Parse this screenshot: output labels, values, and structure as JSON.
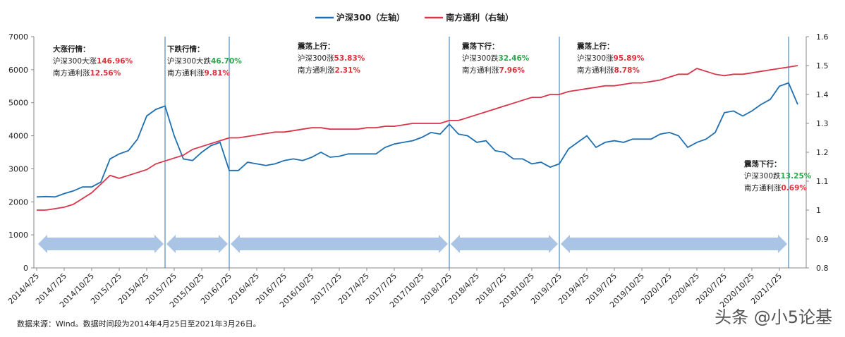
{
  "chart_data": {
    "type": "line",
    "legend_position": "top",
    "x": [
      "2014/4/25",
      null,
      null,
      "2014/7/25",
      null,
      null,
      "2014/10/25",
      null,
      null,
      "2015/1/25",
      null,
      null,
      "2015/4/25",
      null,
      null,
      "2015/7/25",
      null,
      null,
      "2015/10/25",
      null,
      null,
      "2016/1/25",
      null,
      null,
      "2016/4/25",
      null,
      null,
      "2016/7/25",
      null,
      null,
      "2016/10/25",
      null,
      null,
      "2017/1/25",
      null,
      null,
      "2017/4/25",
      null,
      null,
      "2017/7/25",
      null,
      null,
      "2017/10/25",
      null,
      null,
      "2018/1/25",
      null,
      null,
      "2018/4/25",
      null,
      null,
      "2018/7/25",
      null,
      null,
      "2018/10/25",
      null,
      null,
      "2019/1/25",
      null,
      null,
      "2019/4/25",
      null,
      null,
      "2019/7/25",
      null,
      null,
      "2019/10/25",
      null,
      null,
      "2020/1/25",
      null,
      null,
      "2020/4/25",
      null,
      null,
      "2020/7/25",
      null,
      null,
      "2020/10/25",
      null,
      null,
      "2021/1/25",
      null,
      null
    ],
    "series": [
      {
        "name": "沪深300（左轴）",
        "color": "#1f6fb0",
        "axis": "y",
        "values": [
          2150,
          2160,
          2150,
          2250,
          2330,
          2450,
          2450,
          2600,
          3300,
          3450,
          3550,
          3900,
          4600,
          4800,
          4900,
          4000,
          3300,
          3250,
          3500,
          3700,
          3800,
          2950,
          2950,
          3200,
          3150,
          3100,
          3150,
          3250,
          3300,
          3250,
          3350,
          3500,
          3350,
          3380,
          3450,
          3450,
          3450,
          3450,
          3650,
          3750,
          3800,
          3850,
          3950,
          4100,
          4050,
          4350,
          4050,
          4000,
          3800,
          3850,
          3550,
          3500,
          3300,
          3300,
          3150,
          3200,
          3050,
          3150,
          3600,
          3800,
          4000,
          3650,
          3800,
          3850,
          3800,
          3900,
          3900,
          3900,
          4050,
          4100,
          4000,
          3650,
          3800,
          3900,
          4100,
          4700,
          4750,
          4600,
          4750,
          4950,
          5100,
          5500,
          5600,
          4950
        ]
      },
      {
        "name": "南方通利（右轴）",
        "color": "#d9354a",
        "axis": "y2",
        "values": [
          1.0,
          1.0,
          1.005,
          1.01,
          1.02,
          1.04,
          1.06,
          1.09,
          1.12,
          1.11,
          1.12,
          1.13,
          1.14,
          1.16,
          1.17,
          1.18,
          1.19,
          1.21,
          1.22,
          1.23,
          1.24,
          1.25,
          1.25,
          1.255,
          1.26,
          1.265,
          1.27,
          1.27,
          1.275,
          1.28,
          1.285,
          1.285,
          1.28,
          1.28,
          1.28,
          1.28,
          1.285,
          1.285,
          1.29,
          1.29,
          1.295,
          1.3,
          1.3,
          1.3,
          1.3,
          1.31,
          1.31,
          1.32,
          1.33,
          1.34,
          1.35,
          1.36,
          1.37,
          1.38,
          1.39,
          1.39,
          1.4,
          1.4,
          1.41,
          1.415,
          1.42,
          1.425,
          1.43,
          1.43,
          1.435,
          1.44,
          1.44,
          1.445,
          1.45,
          1.46,
          1.47,
          1.47,
          1.49,
          1.48,
          1.47,
          1.465,
          1.47,
          1.47,
          1.475,
          1.48,
          1.485,
          1.49,
          1.495,
          1.5
        ]
      }
    ],
    "ylim": [
      0,
      7000
    ],
    "yticks": [
      0,
      1000,
      2000,
      3000,
      4000,
      5000,
      6000,
      7000
    ],
    "y2lim": [
      0.8,
      1.6
    ],
    "y2ticks": [
      0.8,
      0.9,
      1,
      1.1,
      1.2,
      1.3,
      1.4,
      1.5,
      1.6
    ],
    "annotations": [
      {
        "title": "大涨行情：",
        "rows": [
          {
            "label": "沪深300大涨",
            "value": "146.96%",
            "color": "#e0303a"
          },
          {
            "label": "南方通利涨",
            "value": "12.56%",
            "color": "#e0303a"
          }
        ]
      },
      {
        "title": "下跌行情：",
        "rows": [
          {
            "label": "沪深300大跌",
            "value": "46.70%",
            "color": "#2aa84a"
          },
          {
            "label": "南方通利涨",
            "value": "9.81%",
            "color": "#e0303a"
          }
        ]
      },
      {
        "title": "震荡上行：",
        "rows": [
          {
            "label": "沪深300涨",
            "value": "53.83%",
            "color": "#e0303a"
          },
          {
            "label": "南方通利涨",
            "value": "2.31%",
            "color": "#e0303a"
          }
        ]
      },
      {
        "title": "震荡下行：",
        "rows": [
          {
            "label": "沪深300跌",
            "value": "32.46%",
            "color": "#2aa84a"
          },
          {
            "label": "南方通利涨",
            "value": "7.96%",
            "color": "#e0303a"
          }
        ]
      },
      {
        "title": "震荡上行：",
        "rows": [
          {
            "label": "沪深300涨",
            "value": "95.89%",
            "color": "#e0303a"
          },
          {
            "label": "南方通利涨",
            "value": "8.78%",
            "color": "#e0303a"
          }
        ]
      },
      {
        "title": "震荡下行：",
        "rows": [
          {
            "label": "沪深300跌",
            "value": "13.25%",
            "color": "#2aa84a"
          },
          {
            "label": "南方通利涨",
            "value": "0.69%",
            "color": "#e0303a"
          }
        ]
      }
    ],
    "source": "数据来源：Wind。数据时间段为2014年4月25日至2021年3月26日。",
    "watermark": "头条 @小5论基"
  }
}
